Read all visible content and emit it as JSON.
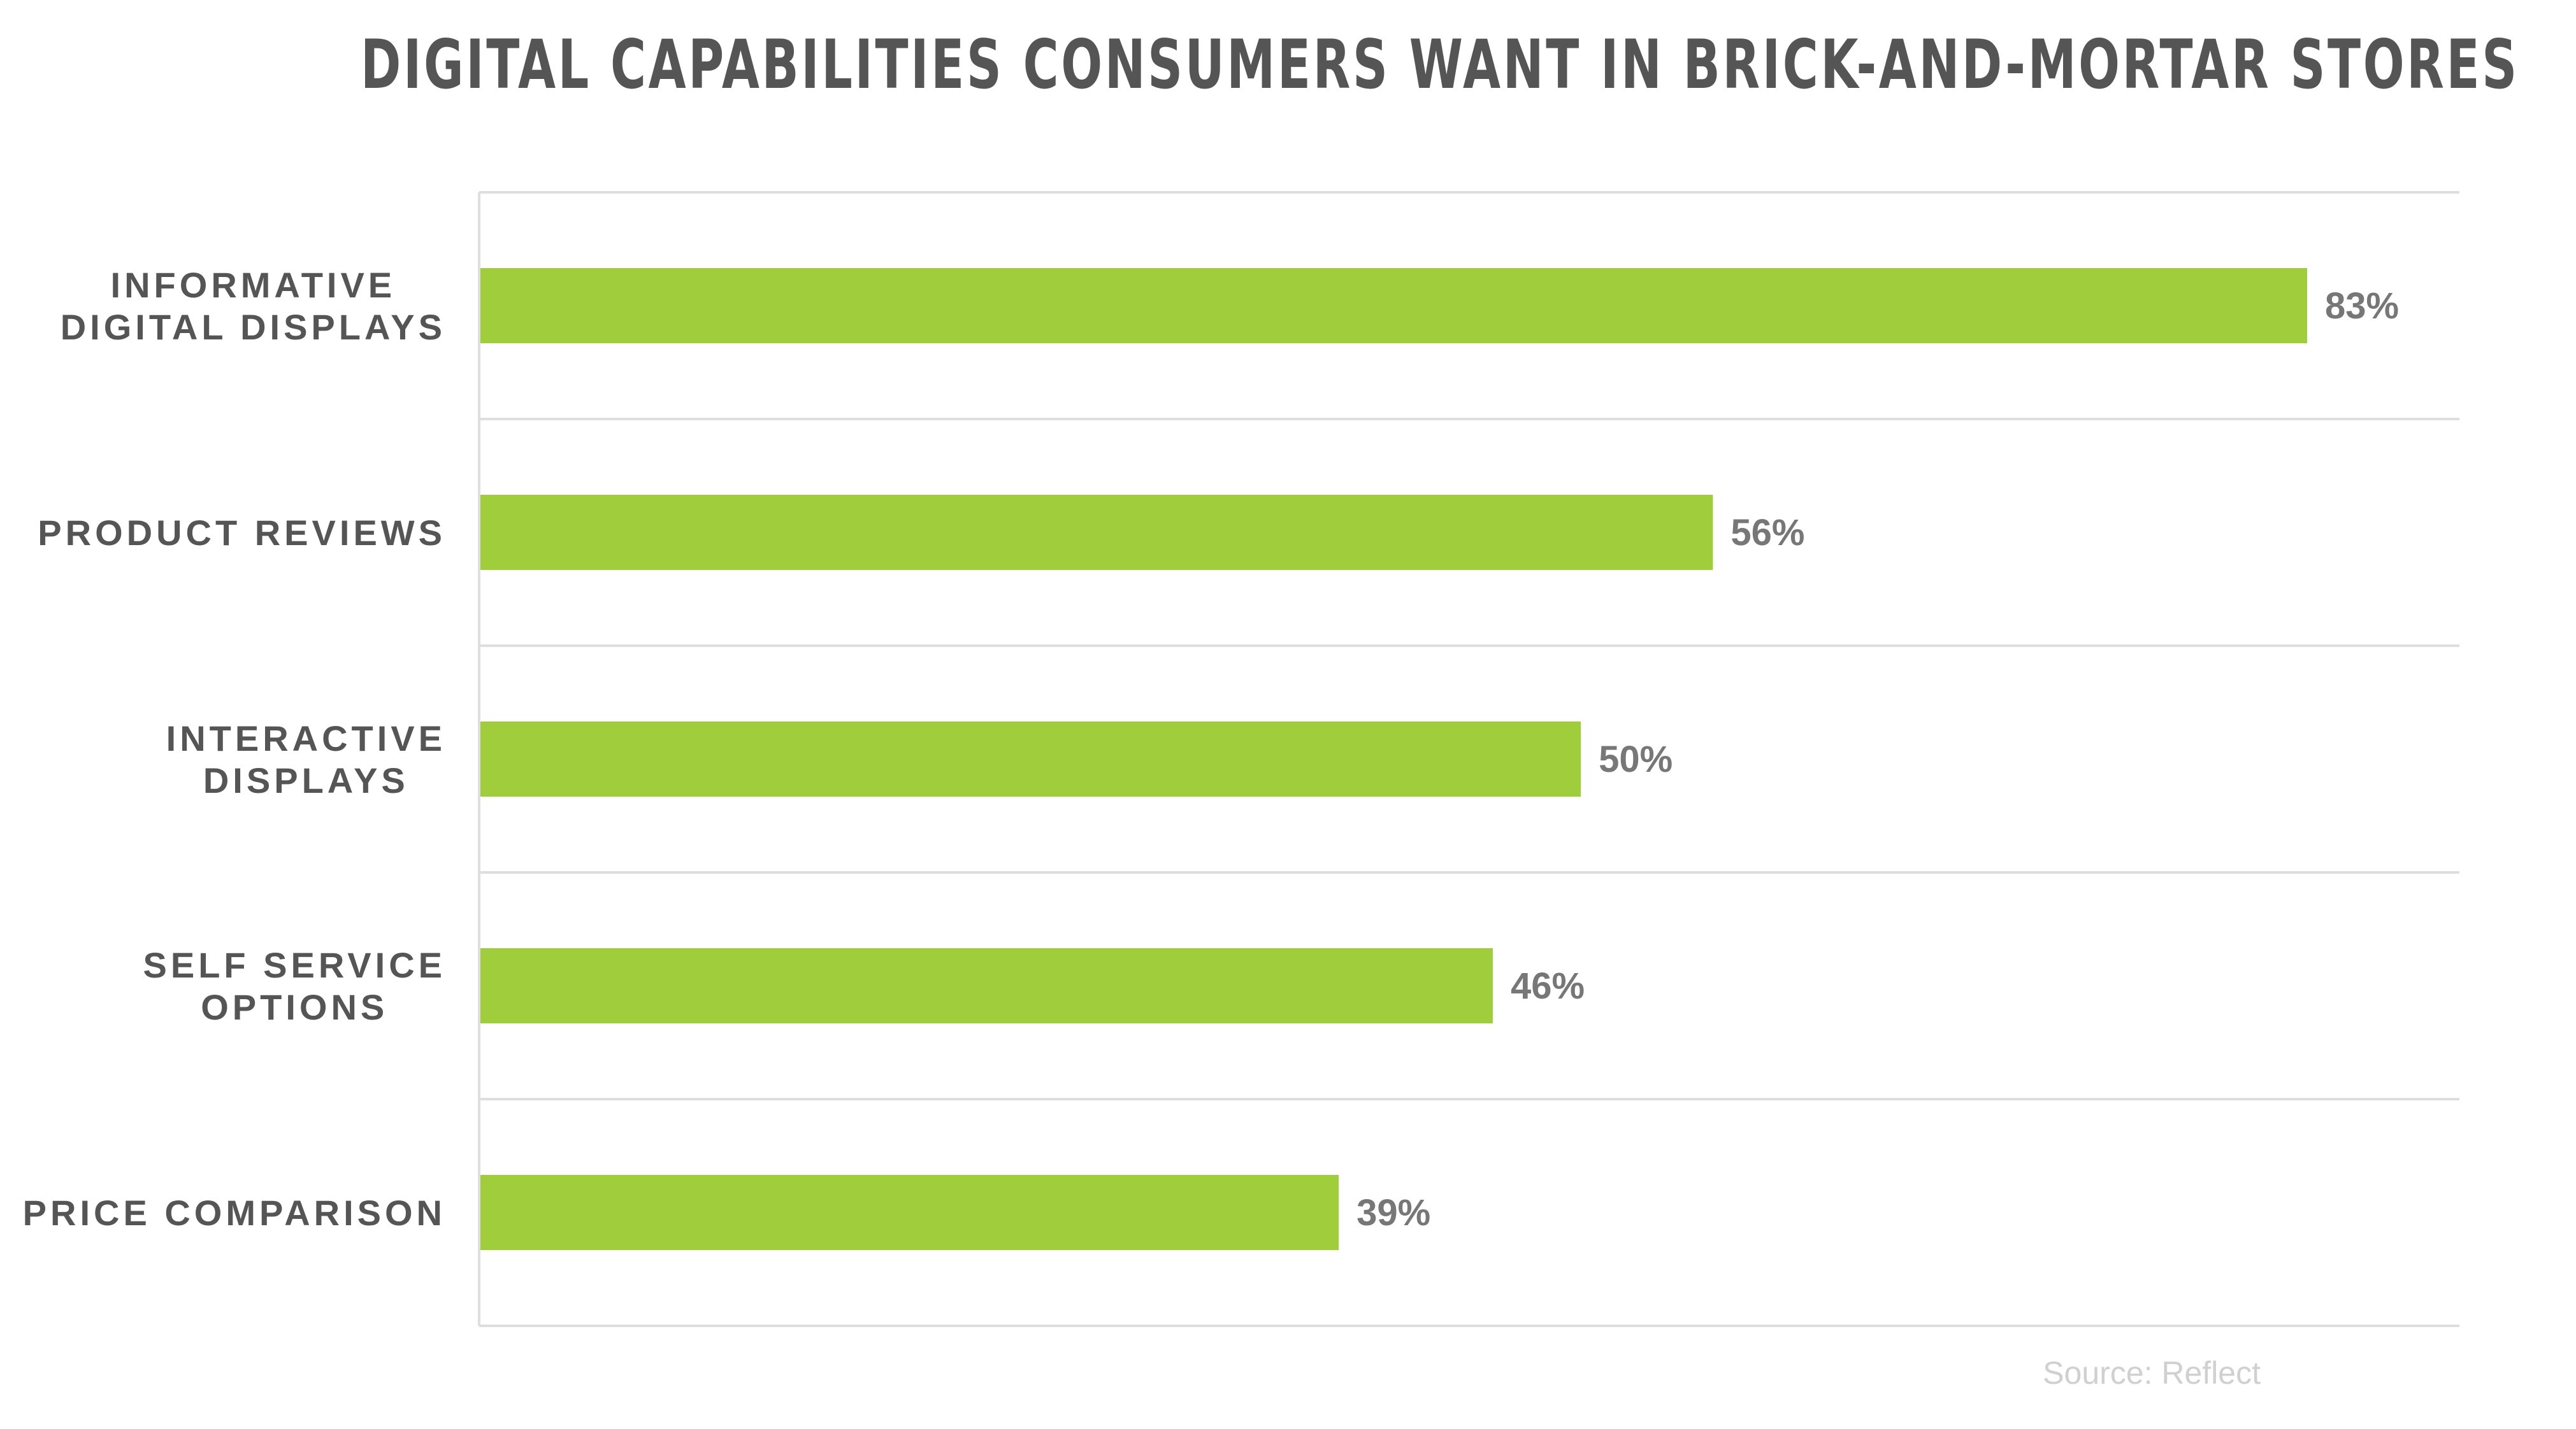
{
  "chart_data": {
    "type": "bar",
    "orientation": "horizontal",
    "title": "DIGITAL CAPABILITIES CONSUMERS WANT IN BRICK-AND-MORTAR STORES",
    "categories": [
      [
        "INFORMATIVE",
        "DIGITAL DISPLAYS"
      ],
      [
        "PRODUCT REVIEWS"
      ],
      [
        "INTERACTIVE",
        "DISPLAYS"
      ],
      [
        "SELF SERVICE",
        "OPTIONS"
      ],
      [
        "PRICE COMPARISON"
      ]
    ],
    "values": [
      83,
      56,
      50,
      46,
      39
    ],
    "value_labels": [
      "83%",
      "56%",
      "50%",
      "46%",
      "39%"
    ],
    "unit": "%",
    "xlim": [
      0,
      90
    ],
    "grid": "horizontal separators between categories",
    "bar_color": "#a0cd3b",
    "source": "Source: Reflect"
  }
}
